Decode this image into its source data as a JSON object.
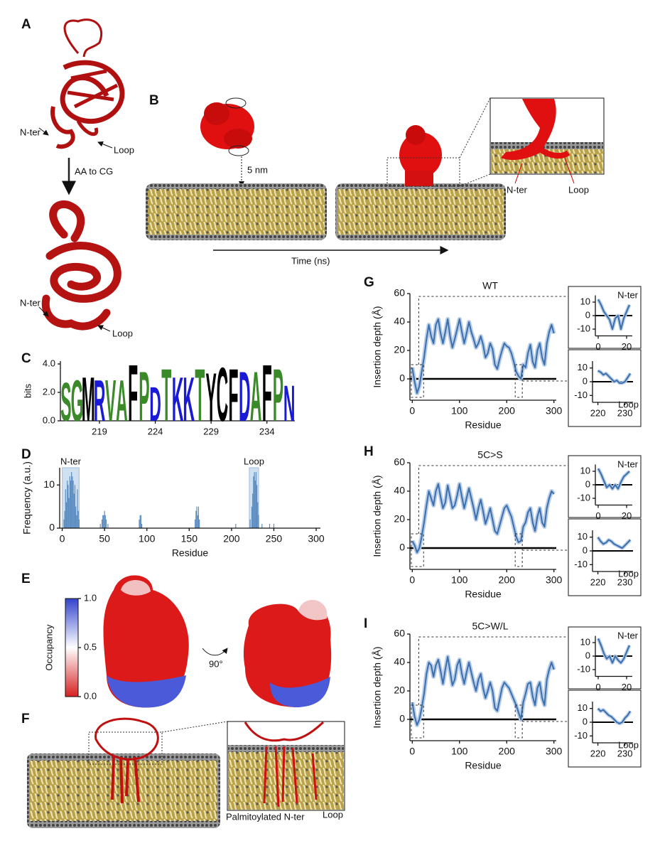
{
  "figure": {
    "panel_labels": [
      "A",
      "B",
      "C",
      "D",
      "E",
      "F",
      "G",
      "H",
      "I"
    ],
    "annotations": [
      "N-ter",
      "Loop",
      "AA to CG",
      "N-ter",
      "Loop",
      "5 nm",
      "Time (ns)",
      "N-ter",
      "Loop",
      "90°",
      "Palmitoylated N-ter",
      "Loop"
    ]
  },
  "chart_data": [
    {
      "type": "logo",
      "ylabel": "bits",
      "x": [
        216,
        217,
        218,
        219,
        220,
        221,
        222,
        223,
        224,
        225,
        226,
        227,
        228,
        229,
        230,
        231,
        232,
        233,
        234,
        235,
        236
      ],
      "letters": [
        "S",
        "G",
        "M",
        "R",
        "V",
        "A",
        "F",
        "P",
        "D",
        "T",
        "K",
        "K",
        "T",
        "Y",
        "C",
        "F",
        "D",
        "A",
        "F",
        "P",
        "N"
      ],
      "values": [
        2.8,
        3.0,
        3.2,
        3.0,
        3.0,
        3.0,
        4.1,
        3.6,
        2.5,
        3.8,
        3.2,
        3.2,
        3.8,
        3.5,
        3.9,
        3.8,
        3.6,
        3.6,
        4.1,
        3.8,
        2.6
      ],
      "colors": [
        "#3a8a2a",
        "#3a8a2a",
        "#000000",
        "#1a1ad6",
        "#3a8a2a",
        "#3a8a2a",
        "#000000",
        "#3a8a2a",
        "#1a1ad6",
        "#3a8a2a",
        "#1a1ad6",
        "#1a1ad6",
        "#3a8a2a",
        "#000000",
        "#000000",
        "#000000",
        "#1a1ad6",
        "#3a8a2a",
        "#000000",
        "#3a8a2a",
        "#1a1ad6"
      ],
      "xlim": [
        215.5,
        236.5
      ],
      "ylim": [
        0,
        4.2
      ],
      "xticks": [
        219,
        224,
        229,
        234
      ],
      "yticks": [
        {
          "value": 0,
          "label": "0.0"
        },
        {
          "value": 2,
          "label": "2.0"
        },
        {
          "value": 4,
          "label": "4.0"
        }
      ]
    },
    {
      "type": "bar",
      "ylabel": "Frequency (a.u.)",
      "xlabel": "Residue",
      "x": [
        2,
        3,
        4,
        5,
        6,
        7,
        8,
        9,
        10,
        11,
        12,
        13,
        14,
        15,
        16,
        17,
        18,
        19,
        20,
        45,
        47,
        48,
        49,
        50,
        51,
        52,
        54,
        91,
        92,
        93,
        94,
        157,
        158,
        159,
        160,
        161,
        162,
        205,
        222,
        224,
        225,
        226,
        227,
        228,
        229,
        230,
        231,
        232,
        236,
        245,
        250
      ],
      "values": [
        2,
        4,
        9,
        6,
        11,
        10,
        7,
        12,
        11,
        13,
        12,
        11,
        8,
        10,
        5,
        3,
        9,
        4,
        2,
        1,
        2,
        3,
        3,
        4,
        3,
        2,
        1,
        2,
        3,
        3,
        1,
        2,
        4,
        5,
        3,
        5,
        2,
        1,
        2,
        5,
        8,
        12,
        13,
        11,
        13,
        10,
        6,
        3,
        1,
        1,
        1
      ],
      "color": "#5b8cc0",
      "xlim": [
        -3,
        305
      ],
      "ylim": [
        0,
        14
      ],
      "xticks": [
        0,
        50,
        100,
        150,
        200,
        250,
        300
      ],
      "yticks": [
        0,
        10
      ],
      "regions": [
        {
          "label": "N-ter",
          "range": [
            0,
            20
          ]
        },
        {
          "label": "Loop",
          "range": [
            221,
            232
          ]
        }
      ]
    },
    {
      "type": "colorbar",
      "ylabel": "Occupancy",
      "ylim": [
        0,
        1
      ],
      "yticks": [
        {
          "value": 0,
          "label": "0.0"
        },
        {
          "value": 0.5,
          "label": "0.5"
        },
        {
          "value": 1,
          "label": "1.0"
        }
      ],
      "colors": [
        "#d62020",
        "#ffffff",
        "#3344cc"
      ]
    },
    {
      "type": "line",
      "title": "WT",
      "xlabel": "Residue",
      "ylabel": "Insertion depth (Å)",
      "x": [
        0,
        5,
        10,
        15,
        20,
        25,
        30,
        35,
        40,
        45,
        50,
        55,
        60,
        65,
        70,
        75,
        80,
        85,
        90,
        95,
        100,
        105,
        110,
        115,
        120,
        125,
        130,
        135,
        140,
        145,
        150,
        155,
        160,
        165,
        170,
        175,
        180,
        185,
        190,
        195,
        200,
        205,
        210,
        215,
        220,
        225,
        230,
        235,
        240,
        245,
        250,
        255,
        260,
        265,
        270,
        275,
        280,
        285,
        290,
        295,
        300
      ],
      "values": [
        8,
        -2,
        -10,
        -5,
        5,
        15,
        28,
        38,
        30,
        25,
        38,
        42,
        32,
        25,
        33,
        42,
        30,
        22,
        28,
        35,
        42,
        33,
        25,
        32,
        40,
        33,
        28,
        22,
        25,
        30,
        24,
        15,
        18,
        25,
        21,
        10,
        7,
        14,
        20,
        25,
        23,
        22,
        18,
        12,
        5,
        2,
        0,
        10,
        8,
        18,
        24,
        12,
        8,
        20,
        25,
        15,
        10,
        25,
        33,
        38,
        32
      ],
      "color": "#3b6fad",
      "xlim": [
        -5,
        305
      ],
      "ylim": [
        -15,
        60
      ],
      "xticks": [
        0,
        100,
        200,
        300
      ],
      "yticks": [
        0,
        20,
        40,
        60
      ]
    },
    {
      "type": "line",
      "label": "N-ter",
      "x": [
        0,
        2,
        4,
        6,
        8,
        10,
        12,
        14,
        16,
        18,
        20,
        22
      ],
      "values": [
        12,
        8,
        3,
        0,
        -3,
        -10,
        -2,
        0,
        -10,
        -2,
        3,
        8
      ],
      "color": "#3b6fad",
      "xlim": [
        -2,
        24
      ],
      "ylim": [
        -15,
        15
      ],
      "xticks": [
        0,
        20
      ],
      "yticks": [
        -10,
        0,
        10
      ]
    },
    {
      "type": "line",
      "label": "Loop",
      "x": [
        220,
        221,
        222,
        223,
        224,
        225,
        226,
        227,
        228,
        229,
        230,
        231,
        232
      ],
      "values": [
        8,
        7,
        5,
        6,
        4,
        2,
        0,
        1,
        -1,
        -1,
        0,
        3,
        6
      ],
      "color": "#3b6fad",
      "xlim": [
        218,
        233
      ],
      "ylim": [
        -15,
        15
      ],
      "xticks": [
        220,
        230
      ],
      "yticks": [
        -10,
        0,
        10
      ]
    },
    {
      "type": "line",
      "title": "5C>S",
      "xlabel": "Residue",
      "ylabel": "Insertion depth (Å)",
      "x": [
        0,
        5,
        10,
        15,
        20,
        25,
        30,
        35,
        40,
        45,
        50,
        55,
        60,
        65,
        70,
        75,
        80,
        85,
        90,
        95,
        100,
        105,
        110,
        115,
        120,
        125,
        130,
        135,
        140,
        145,
        150,
        155,
        160,
        165,
        170,
        175,
        180,
        185,
        190,
        195,
        200,
        205,
        210,
        215,
        220,
        225,
        230,
        235,
        240,
        245,
        250,
        255,
        260,
        265,
        270,
        275,
        280,
        285,
        290,
        295,
        300
      ],
      "values": [
        5,
        2,
        -3,
        0,
        8,
        18,
        30,
        40,
        35,
        30,
        40,
        45,
        36,
        28,
        32,
        44,
        36,
        28,
        30,
        37,
        45,
        36,
        28,
        35,
        42,
        35,
        28,
        20,
        28,
        34,
        26,
        17,
        22,
        28,
        20,
        12,
        10,
        16,
        22,
        28,
        30,
        26,
        22,
        15,
        8,
        4,
        5,
        15,
        18,
        25,
        28,
        18,
        12,
        22,
        28,
        18,
        15,
        28,
        35,
        40,
        38
      ],
      "color": "#3b6fad",
      "xlim": [
        -5,
        305
      ],
      "ylim": [
        -15,
        60
      ],
      "xticks": [
        0,
        100,
        200,
        300
      ],
      "yticks": [
        0,
        20,
        40,
        60
      ]
    },
    {
      "type": "line",
      "label": "N-ter",
      "x": [
        0,
        2,
        4,
        6,
        8,
        10,
        12,
        14,
        16,
        18,
        20,
        22
      ],
      "values": [
        12,
        8,
        3,
        -2,
        0,
        -3,
        0,
        -3,
        2,
        6,
        8,
        10
      ],
      "color": "#3b6fad",
      "xlim": [
        -2,
        24
      ],
      "ylim": [
        -15,
        15
      ],
      "xticks": [
        0,
        20
      ],
      "yticks": [
        -10,
        0,
        10
      ]
    },
    {
      "type": "line",
      "label": "Loop",
      "x": [
        220,
        221,
        222,
        223,
        224,
        225,
        226,
        227,
        228,
        229,
        230,
        231,
        232
      ],
      "values": [
        10,
        7,
        5,
        6,
        8,
        7,
        5,
        4,
        3,
        2,
        4,
        6,
        8
      ],
      "color": "#3b6fad",
      "xlim": [
        218,
        233
      ],
      "ylim": [
        -15,
        15
      ],
      "xticks": [
        220,
        230
      ],
      "yticks": [
        -10,
        0,
        10
      ]
    },
    {
      "type": "line",
      "title": "5C>W/L",
      "xlabel": "Residue",
      "ylabel": "Insertion depth (Å)",
      "x": [
        0,
        5,
        10,
        15,
        20,
        25,
        30,
        35,
        40,
        45,
        50,
        55,
        60,
        65,
        70,
        75,
        80,
        85,
        90,
        95,
        100,
        105,
        110,
        115,
        120,
        125,
        130,
        135,
        140,
        145,
        150,
        155,
        160,
        165,
        170,
        175,
        180,
        185,
        190,
        195,
        200,
        205,
        210,
        215,
        220,
        225,
        230,
        235,
        240,
        245,
        250,
        255,
        260,
        265,
        270,
        275,
        280,
        285,
        290,
        295,
        300
      ],
      "values": [
        12,
        2,
        -4,
        0,
        8,
        18,
        32,
        40,
        38,
        30,
        38,
        42,
        34,
        25,
        35,
        44,
        34,
        24,
        28,
        38,
        42,
        32,
        25,
        33,
        40,
        33,
        26,
        20,
        28,
        32,
        22,
        15,
        20,
        26,
        20,
        8,
        6,
        14,
        22,
        26,
        24,
        22,
        18,
        14,
        10,
        5,
        0,
        12,
        18,
        25,
        26,
        16,
        10,
        22,
        26,
        15,
        10,
        28,
        35,
        40,
        35
      ],
      "color": "#3b6fad",
      "xlim": [
        -5,
        305
      ],
      "ylim": [
        -15,
        60
      ],
      "xticks": [
        0,
        100,
        200,
        300
      ],
      "yticks": [
        0,
        20,
        40,
        60
      ]
    },
    {
      "type": "line",
      "label": "N-ter",
      "x": [
        0,
        2,
        4,
        6,
        8,
        10,
        12,
        14,
        16,
        18,
        20,
        22
      ],
      "values": [
        13,
        8,
        2,
        -2,
        0,
        -5,
        0,
        -3,
        -5,
        -2,
        3,
        8
      ],
      "color": "#3b6fad",
      "xlim": [
        -2,
        24
      ],
      "ylim": [
        -15,
        15
      ],
      "xticks": [
        0,
        20
      ],
      "yticks": [
        -10,
        0,
        10
      ]
    },
    {
      "type": "line",
      "label": "Loop",
      "x": [
        220,
        221,
        222,
        223,
        224,
        225,
        226,
        227,
        228,
        229,
        230,
        231,
        232
      ],
      "values": [
        10,
        8,
        9,
        7,
        5,
        4,
        2,
        0,
        -1,
        0,
        3,
        5,
        8
      ],
      "color": "#3b6fad",
      "xlim": [
        218,
        233
      ],
      "ylim": [
        -15,
        15
      ],
      "xticks": [
        220,
        230
      ],
      "yticks": [
        -10,
        0,
        10
      ]
    }
  ]
}
